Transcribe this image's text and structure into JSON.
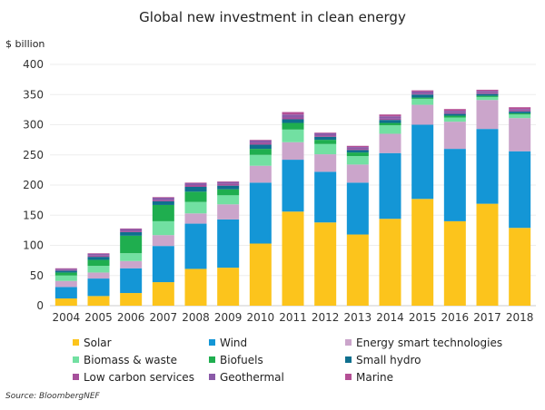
{
  "chart_data": {
    "type": "bar",
    "stacked": true,
    "title": "Global new investment in clean energy",
    "ylabel": "$ billion",
    "xlabel": "",
    "ylim": [
      0,
      400
    ],
    "yticks": [
      0,
      50,
      100,
      150,
      200,
      250,
      300,
      350,
      400
    ],
    "grid": true,
    "legend_position": "bottom",
    "categories": [
      "2004",
      "2005",
      "2006",
      "2007",
      "2008",
      "2009",
      "2010",
      "2011",
      "2012",
      "2013",
      "2014",
      "2015",
      "2016",
      "2017",
      "2018"
    ],
    "series": [
      {
        "name": "Solar",
        "color": "#fcc41c",
        "values": [
          12,
          16,
          21,
          39,
          61,
          63,
          103,
          156,
          138,
          118,
          144,
          177,
          140,
          169,
          129
        ]
      },
      {
        "name": "Wind",
        "color": "#1496d6",
        "values": [
          19,
          29,
          41,
          60,
          75,
          80,
          101,
          86,
          84,
          86,
          109,
          123,
          120,
          124,
          127
        ]
      },
      {
        "name": "Energy smart technologies",
        "color": "#cba5cb",
        "values": [
          10,
          10,
          12,
          18,
          17,
          25,
          28,
          29,
          29,
          30,
          32,
          33,
          45,
          48,
          55
        ]
      },
      {
        "name": "Biomass & waste",
        "color": "#72e0a2",
        "values": [
          9,
          11,
          13,
          23,
          19,
          15,
          18,
          21,
          17,
          14,
          14,
          10,
          7,
          5,
          6
        ]
      },
      {
        "name": "Biofuels",
        "color": "#1fae4f",
        "values": [
          5,
          10,
          29,
          27,
          17,
          10,
          10,
          11,
          7,
          6,
          4,
          2,
          3,
          2,
          2
        ]
      },
      {
        "name": "Small hydro",
        "color": "#0f6f8e",
        "values": [
          3,
          5,
          6,
          6,
          8,
          6,
          7,
          6,
          5,
          4,
          5,
          5,
          3,
          3,
          3
        ]
      },
      {
        "name": "Low carbon services",
        "color": "#a6509b",
        "values": [
          1,
          2,
          2,
          2,
          3,
          3,
          3,
          3,
          2,
          2,
          2,
          1,
          2,
          2,
          2
        ]
      },
      {
        "name": "Geothermal",
        "color": "#8a5aa8",
        "values": [
          2,
          3,
          3,
          4,
          3,
          3,
          4,
          5,
          4,
          3,
          4,
          4,
          3,
          3,
          2
        ]
      },
      {
        "name": "Marine",
        "color": "#b44f95",
        "values": [
          1,
          1,
          1,
          1,
          1,
          1,
          1,
          4,
          1,
          2,
          3,
          2,
          3,
          2,
          3
        ]
      }
    ],
    "source": "Source: BloombergNEF"
  }
}
